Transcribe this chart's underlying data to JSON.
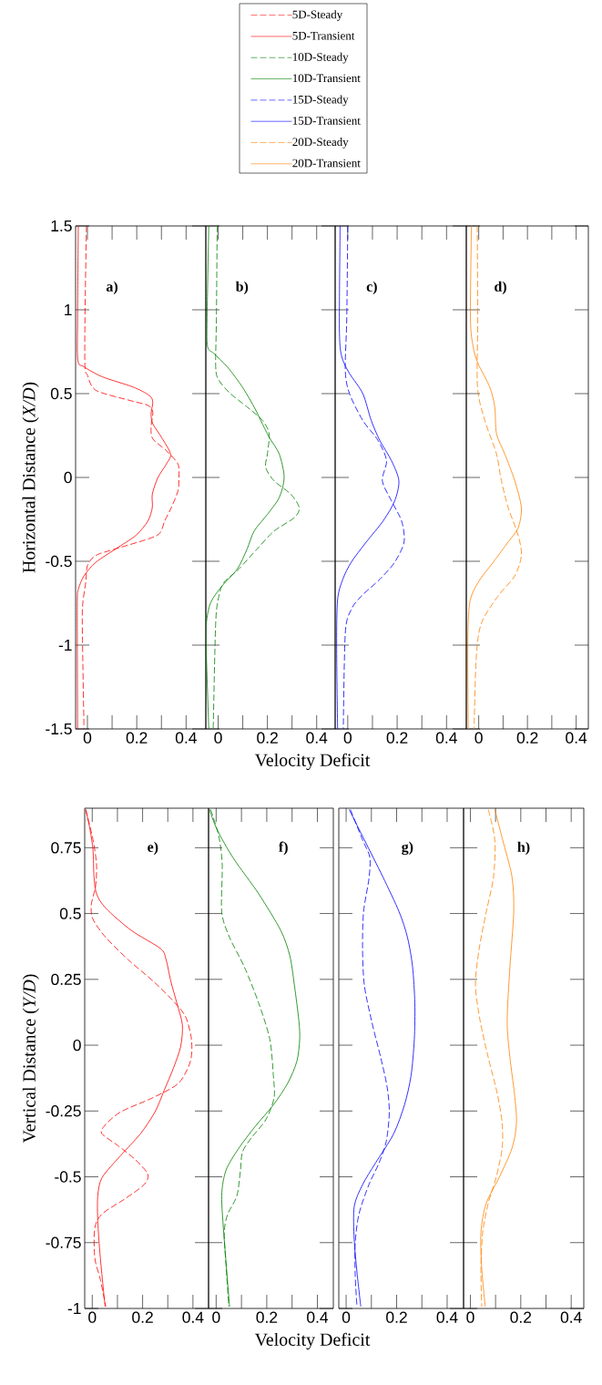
{
  "chart_data": [
    {
      "type": "line",
      "ylabel": "Horizontal Distance (*X/D*)",
      "annotations": [
        "a)"
      ],
      "legend": "top",
      "xlim": [
        -0.048,
        0.48
      ],
      "ylim": [
        -1.5,
        1.5
      ],
      "xticks": [
        0,
        0.2,
        0.4
      ],
      "yticks": [
        -1.5,
        -1,
        -0.5,
        0,
        0.5,
        1,
        1.5
      ],
      "series": [
        {
          "name": "5D-Steady",
          "color": "#ff0000",
          "line_style": "dashed",
          "x": [
            -0.004,
            -0.01,
            -0.01,
            0,
            0.034,
            0.17,
            0.245,
            0.265,
            0.258,
            0.265,
            0.32,
            0.367,
            0.371,
            0.367,
            0.34,
            0.313,
            0.295,
            0.25,
            0.116,
            0.034,
            0,
            -0.007,
            -0.02,
            -0.02,
            -0.014
          ],
          "values": [
            1.5,
            0.95,
            0.66,
            0.61,
            0.52,
            0.46,
            0.43,
            0.39,
            0.3,
            0.23,
            0.16,
            0.08,
            0,
            -0.08,
            -0.18,
            -0.26,
            -0.33,
            -0.365,
            -0.425,
            -0.465,
            -0.526,
            -0.627,
            -0.77,
            -0.97,
            -1.5
          ]
        },
        {
          "name": "5D-Transient",
          "color": "#ff0000",
          "line_style": "solid",
          "x": [
            -0.037,
            -0.04,
            -0.039,
            -0.014,
            0.061,
            0.184,
            0.25,
            0.265,
            0.258,
            0.265,
            0.3,
            0.337,
            0.32,
            0.286,
            0.263,
            0.263,
            0.245,
            0.197,
            0.116,
            0.034,
            -0.014,
            -0.037,
            -0.041,
            -0.041,
            -0.04
          ],
          "values": [
            1.5,
            0.95,
            0.7,
            0.66,
            0.6,
            0.54,
            0.49,
            0.45,
            0.38,
            0.32,
            0.24,
            0.14,
            0.08,
            0,
            -0.1,
            -0.18,
            -0.26,
            -0.345,
            -0.425,
            -0.506,
            -0.587,
            -0.667,
            -0.728,
            -1.0,
            -1.5
          ]
        }
      ]
    },
    {
      "type": "line",
      "xlabel": "Velocity Deficit",
      "annotations": [
        "b)"
      ],
      "legend": "top",
      "tick_labels": "x",
      "xlim": [
        -0.05,
        0.475
      ],
      "ylim": [
        -1.5,
        1.5
      ],
      "xticks": [
        0,
        0.2,
        0.4
      ],
      "yticks": [
        -1.5,
        -1,
        -0.5,
        0,
        0.5,
        1,
        1.5
      ],
      "series": [
        {
          "name": "10D-Steady",
          "color": "#008000",
          "line_style": "dashed",
          "x": [
            -0.004,
            -0.007,
            -0.01,
            0.003,
            0.05,
            0.118,
            0.18,
            0.207,
            0.2,
            0.193,
            0.227,
            0.295,
            0.329,
            0.309,
            0.227,
            0.159,
            0.084,
            0.023,
            0.003,
            -0.01,
            -0.02
          ],
          "values": [
            1.5,
            0.95,
            0.66,
            0.58,
            0.5,
            0.42,
            0.34,
            0.26,
            0.14,
            0.06,
            -0.02,
            -0.1,
            -0.18,
            -0.24,
            -0.32,
            -0.425,
            -0.546,
            -0.627,
            -0.708,
            -0.87,
            -1.5
          ]
        },
        {
          "name": "10D-Transient",
          "color": "#008000",
          "line_style": "solid",
          "x": [
            -0.038,
            -0.045,
            -0.043,
            -0.018,
            0.037,
            0.098,
            0.146,
            0.173,
            0.207,
            0.248,
            0.268,
            0.248,
            0.2,
            0.146,
            0.118,
            0.078,
            0.016,
            -0.031,
            -0.048,
            -0.049,
            -0.038
          ],
          "values": [
            1.5,
            0.95,
            0.78,
            0.74,
            0.66,
            0.54,
            0.42,
            0.34,
            0.24,
            0.14,
            0,
            -0.12,
            -0.22,
            -0.32,
            -0.425,
            -0.546,
            -0.647,
            -0.748,
            -0.87,
            -1.0,
            -1.5
          ]
        }
      ]
    },
    {
      "type": "line",
      "annotations": [
        "c)"
      ],
      "legend": "top",
      "tick_labels": "x",
      "xlim": [
        -0.051,
        0.48
      ],
      "ylim": [
        -1.5,
        1.5
      ],
      "xticks": [
        0,
        0.2,
        0.4
      ],
      "yticks": [
        -1.5,
        -1,
        -0.5,
        0,
        0.5,
        1,
        1.5
      ],
      "series": [
        {
          "name": "15D-Steady",
          "color": "#0000ff",
          "line_style": "dashed",
          "x": [
            0,
            -0.004,
            -0.01,
            0.007,
            0.061,
            0.123,
            0.157,
            0.14,
            0.177,
            0.218,
            0.228,
            0.19,
            0.13,
            0.055,
            0.014,
            -0.01,
            -0.018
          ],
          "values": [
            1.5,
            0.95,
            0.64,
            0.5,
            0.34,
            0.22,
            0.1,
            -0.02,
            -0.14,
            -0.26,
            -0.385,
            -0.506,
            -0.607,
            -0.708,
            -0.788,
            -0.93,
            -1.5
          ]
        },
        {
          "name": "15D-Transient",
          "color": "#0000ff",
          "line_style": "solid",
          "x": [
            -0.031,
            -0.034,
            -0.031,
            -0.02,
            0.007,
            0.061,
            0.095,
            0.13,
            0.177,
            0.207,
            0.19,
            0.143,
            0.075,
            0.014,
            -0.02,
            -0.041,
            -0.045,
            -0.041
          ],
          "values": [
            1.5,
            0.95,
            0.78,
            0.7,
            0.62,
            0.5,
            0.34,
            0.22,
            0.1,
            -0.02,
            -0.14,
            -0.26,
            -0.385,
            -0.506,
            -0.607,
            -0.728,
            -1.0,
            -1.5
          ]
        }
      ]
    },
    {
      "type": "line",
      "annotations": [
        "d)"
      ],
      "legend": "top",
      "tick_labels": "x",
      "xlim": [
        -0.051,
        0.45
      ],
      "ylim": [
        -1.5,
        1.5
      ],
      "xticks": [
        0,
        0.2,
        0.4
      ],
      "yticks": [
        -1.5,
        -1,
        -0.5,
        0,
        0.5,
        1,
        1.5
      ],
      "series": [
        {
          "name": "20D-Steady",
          "color": "#ff8000",
          "line_style": "dashed",
          "x": [
            -0.006,
            -0.004,
            -0.005,
            0.025,
            0.073,
            0.093,
            0.121,
            0.162,
            0.175,
            0.148,
            0.079,
            0.011,
            -0.01,
            -0.019
          ],
          "values": [
            1.5,
            0.95,
            0.54,
            0.34,
            0.14,
            -0.02,
            -0.18,
            -0.345,
            -0.466,
            -0.587,
            -0.708,
            -0.869,
            -1.07,
            -1.5
          ]
        },
        {
          "name": "20D-Transient",
          "color": "#ff8000",
          "line_style": "solid",
          "x": [
            -0.03,
            -0.034,
            -0.023,
            -0.003,
            0.045,
            0.066,
            0.073,
            0.107,
            0.148,
            0.175,
            0.162,
            0.121,
            0.059,
            -0.003,
            -0.037,
            -0.045,
            -0.043
          ],
          "values": [
            1.5,
            0.95,
            0.78,
            0.68,
            0.54,
            0.42,
            0.26,
            0.14,
            -0.02,
            -0.18,
            -0.3,
            -0.385,
            -0.506,
            -0.627,
            -0.748,
            -1.0,
            -1.5
          ]
        }
      ]
    },
    {
      "type": "line",
      "ylabel": "Vertical Distance (*Y/D*)",
      "annotations": [
        "e)"
      ],
      "xlim": [
        -0.03,
        0.462
      ],
      "ylim": [
        -1,
        0.9
      ],
      "xticks": [
        0,
        0.2,
        0.4
      ],
      "yticks": [
        -1,
        -0.75,
        -0.5,
        -0.25,
        0,
        0.25,
        0.5,
        0.75
      ],
      "series": [
        {
          "color": "#ff0000",
          "line_style": "dashed",
          "x": [
            -0.026,
            0.003,
            0.017,
            0.013,
            -0.004,
            0.003,
            0.054,
            0.141,
            0.242,
            0.329,
            0.372,
            0.394,
            0.39,
            0.343,
            0.242,
            0.112,
            0.046,
            0.039,
            0.097,
            0.17,
            0.22,
            0.206,
            0.126,
            0.039,
            0.01,
            0.01,
            0.032,
            0.054
          ],
          "values": [
            0.895,
            0.78,
            0.685,
            0.602,
            0.533,
            0.478,
            0.409,
            0.326,
            0.243,
            0.16,
            0.105,
            0.022,
            -0.061,
            -0.144,
            -0.199,
            -0.254,
            -0.309,
            -0.337,
            -0.378,
            -0.434,
            -0.489,
            -0.53,
            -0.586,
            -0.641,
            -0.696,
            -0.807,
            -0.89,
            -0.993
          ]
        },
        {
          "color": "#ff0000",
          "line_style": "solid",
          "x": [
            -0.026,
            -0.009,
            0.003,
            0.007,
            0.017,
            0.054,
            0.155,
            0.271,
            0.293,
            0.312,
            0.336,
            0.358,
            0.351,
            0.322,
            0.286,
            0.249,
            0.191,
            0.112,
            0.039,
            0.022,
            0.022,
            0.032,
            0.051
          ],
          "values": [
            0.895,
            0.82,
            0.74,
            0.64,
            0.575,
            0.52,
            0.436,
            0.367,
            0.326,
            0.243,
            0.16,
            0.077,
            -0.006,
            -0.088,
            -0.171,
            -0.254,
            -0.337,
            -0.42,
            -0.503,
            -0.572,
            -0.669,
            -0.807,
            -0.993
          ]
        }
      ]
    },
    {
      "type": "line",
      "xlabel": "Velocity Deficit",
      "annotations": [
        "f)"
      ],
      "tick_labels": "x",
      "xlim": [
        -0.03,
        0.463
      ],
      "ylim": [
        -1,
        0.9
      ],
      "xticks": [
        0,
        0.2,
        0.4
      ],
      "yticks": [
        -1,
        -0.75,
        -0.5,
        -0.25,
        0,
        0.25,
        0.5,
        0.75
      ],
      "series": [
        {
          "color": "#008000",
          "line_style": "dashed",
          "x": [
            -0.022,
            0.01,
            0.024,
            0.022,
            0.053,
            0.111,
            0.168,
            0.212,
            0.226,
            0.229,
            0.197,
            0.14,
            0.104,
            0.096,
            0.082,
            0.046,
            0.032,
            0.039,
            0.05
          ],
          "values": [
            0.895,
            0.796,
            0.685,
            0.506,
            0.409,
            0.298,
            0.16,
            0.022,
            -0.116,
            -0.199,
            -0.282,
            -0.351,
            -0.406,
            -0.475,
            -0.572,
            -0.641,
            -0.71,
            -0.834,
            -0.993
          ]
        },
        {
          "color": "#008000",
          "line_style": "solid",
          "x": [
            -0.026,
            0.003,
            0.068,
            0.168,
            0.255,
            0.291,
            0.309,
            0.327,
            0.33,
            0.319,
            0.283,
            0.226,
            0.154,
            0.089,
            0.039,
            0.022,
            0.032,
            0.053
          ],
          "values": [
            0.895,
            0.82,
            0.71,
            0.575,
            0.436,
            0.34,
            0.229,
            0.091,
            0.022,
            -0.061,
            -0.144,
            -0.227,
            -0.309,
            -0.392,
            -0.475,
            -0.572,
            -0.738,
            -0.993
          ]
        }
      ]
    },
    {
      "type": "line",
      "annotations": [
        "g)"
      ],
      "tick_labels": "x",
      "xlim": [
        -0.029,
        0.465
      ],
      "ylim": [
        -1,
        0.9
      ],
      "xticks": [
        0,
        0.2,
        0.4
      ],
      "yticks": [
        -1,
        -0.75,
        -0.5,
        -0.25,
        0,
        0.25,
        0.5,
        0.75
      ],
      "series": [
        {
          "color": "#0000ff",
          "line_style": "dashed",
          "x": [
            0.017,
            0.065,
            0.094,
            0.09,
            0.069,
            0.065,
            0.072,
            0.101,
            0.137,
            0.162,
            0.171,
            0.159,
            0.13,
            0.09,
            0.051,
            0.036,
            0.036,
            0.043
          ],
          "values": [
            0.895,
            0.78,
            0.713,
            0.63,
            0.506,
            0.367,
            0.229,
            0.091,
            -0.047,
            -0.157,
            -0.254,
            -0.365,
            -0.448,
            -0.53,
            -0.641,
            -0.751,
            -0.875,
            -0.993
          ]
        },
        {
          "color": "#0000ff",
          "line_style": "solid",
          "x": [
            0.012,
            0.072,
            0.145,
            0.21,
            0.243,
            0.263,
            0.272,
            0.27,
            0.257,
            0.231,
            0.188,
            0.116,
            0.065,
            0.032,
            0.032,
            0.043,
            0.058
          ],
          "values": [
            0.895,
            0.78,
            0.64,
            0.506,
            0.409,
            0.298,
            0.16,
            0.022,
            -0.116,
            -0.227,
            -0.337,
            -0.448,
            -0.53,
            -0.613,
            -0.738,
            -0.862,
            -0.993
          ]
        }
      ]
    },
    {
      "type": "line",
      "annotations": [
        "h)"
      ],
      "tick_labels": "x",
      "xlim": [
        -0.027,
        0.45
      ],
      "ylim": [
        -1,
        0.9
      ],
      "xticks": [
        0,
        0.2,
        0.4
      ],
      "yticks": [
        -1,
        -0.75,
        -0.5,
        -0.25,
        0,
        0.25,
        0.5,
        0.75
      ],
      "series": [
        {
          "color": "#ff8000",
          "line_style": "dashed",
          "x": [
            0.071,
            0.097,
            0.092,
            0.063,
            0.035,
            0.02,
            0.039,
            0.071,
            0.107,
            0.126,
            0.126,
            0.102,
            0.071,
            0.049,
            0.042,
            0.045
          ],
          "values": [
            0.895,
            0.78,
            0.64,
            0.506,
            0.367,
            0.229,
            0.091,
            -0.047,
            -0.185,
            -0.296,
            -0.392,
            -0.503,
            -0.6,
            -0.71,
            -0.848,
            -0.993
          ]
        },
        {
          "color": "#ff8000",
          "line_style": "solid",
          "x": [
            0.097,
            0.128,
            0.165,
            0.172,
            0.157,
            0.146,
            0.157,
            0.175,
            0.183,
            0.165,
            0.114,
            0.063,
            0.042,
            0.045,
            0.059
          ],
          "values": [
            0.895,
            0.78,
            0.64,
            0.506,
            0.298,
            0.091,
            -0.047,
            -0.185,
            -0.296,
            -0.392,
            -0.503,
            -0.6,
            -0.71,
            -0.848,
            -0.993
          ]
        }
      ]
    }
  ]
}
